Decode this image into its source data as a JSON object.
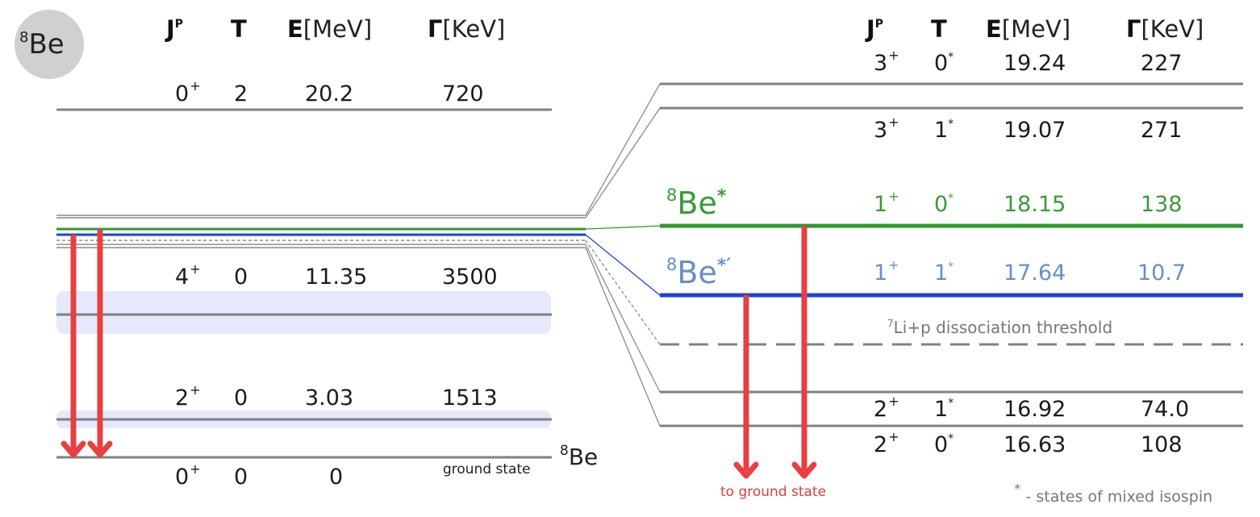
{
  "badge": {
    "mass": "8",
    "element": "Be"
  },
  "columns": {
    "jp": "J",
    "jp_sup": "P",
    "t": "T",
    "e_bold": "E",
    "e_unit": "[MeV]",
    "g_bold": "Γ",
    "g_unit": "[KeV]"
  },
  "left_levels": [
    {
      "j": "0",
      "parity": "+",
      "t": "2",
      "e": "20.2",
      "w": "720"
    },
    {
      "j": "4",
      "parity": "+",
      "t": "0",
      "e": "11.35",
      "w": "3500"
    },
    {
      "j": "2",
      "parity": "+",
      "t": "0",
      "e": "3.03",
      "w": "1513"
    },
    {
      "j": "0",
      "parity": "+",
      "t": "0",
      "e": "0",
      "w": ""
    }
  ],
  "ground_state_note": "ground state",
  "ground_label": {
    "mass": "8",
    "element": "Be"
  },
  "right_levels": [
    {
      "j": "3",
      "parity": "+",
      "t": "0",
      "star": "*",
      "e": "19.24",
      "w": "227"
    },
    {
      "j": "3",
      "parity": "+",
      "t": "1",
      "star": "*",
      "e": "19.07",
      "w": "271"
    },
    {
      "j": "1",
      "parity": "+",
      "t": "0",
      "star": "*",
      "e": "18.15",
      "w": "138"
    },
    {
      "j": "1",
      "parity": "+",
      "t": "1",
      "star": "*",
      "e": "17.64",
      "w": "10.7"
    },
    {
      "j": "2",
      "parity": "+",
      "t": "1",
      "star": "*",
      "e": "16.92",
      "w": "74.0"
    },
    {
      "j": "2",
      "parity": "+",
      "t": "0",
      "star": "*",
      "e": "16.63",
      "w": "108"
    }
  ],
  "be_star": {
    "mass": "8",
    "element": "Be",
    "mark": "*"
  },
  "be_star_prime": {
    "mass": "8",
    "element": "Be",
    "mark": "*′"
  },
  "threshold": {
    "mass": "7",
    "text": "Li+p dissociation threshold"
  },
  "to_ground": "to ground state",
  "mixed_note": {
    "mark": "*",
    "text": " - states of mixed isospin"
  },
  "colors": {
    "level": "#808080",
    "green": "#2e9a2e",
    "blue": "#1f3fe0",
    "arrow": "#e84040",
    "band": "#e6e8fb"
  }
}
